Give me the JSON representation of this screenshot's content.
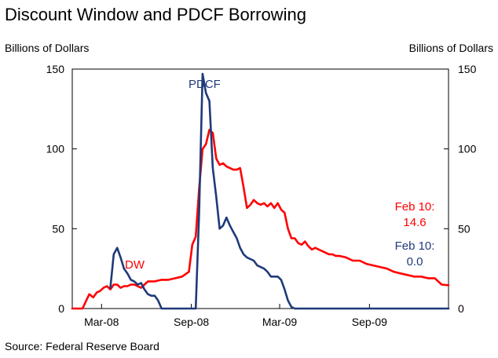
{
  "title": "Discount Window and PDCF Borrowing",
  "source": "Source: Federal Reserve Board",
  "chart_data": {
    "type": "line",
    "title": "Discount Window and PDCF Borrowing",
    "y_left_label": "Billions of Dollars",
    "y_right_label": "Billions of Dollars",
    "ylim": [
      0,
      150
    ],
    "y_ticks": [
      "0",
      "50",
      "100",
      "150"
    ],
    "x_ticks": [
      {
        "label": "Mar-08",
        "date": "2008-03-01"
      },
      {
        "label": "Sep-08",
        "date": "2008-09-01"
      },
      {
        "label": "Mar-09",
        "date": "2009-03-01"
      },
      {
        "label": "Sep-09",
        "date": "2009-09-01"
      }
    ],
    "xlim": [
      "2008-01-01",
      "2010-02-10"
    ],
    "grid": false,
    "series": [
      {
        "name": "DW",
        "color": "#ff0000",
        "points": [
          [
            "2008-01-01",
            0
          ],
          [
            "2008-01-22",
            0
          ],
          [
            "2008-02-05",
            9
          ],
          [
            "2008-02-13",
            7
          ],
          [
            "2008-02-20",
            10
          ],
          [
            "2008-02-27",
            11
          ],
          [
            "2008-03-05",
            13
          ],
          [
            "2008-03-12",
            14
          ],
          [
            "2008-03-19",
            12
          ],
          [
            "2008-03-26",
            15
          ],
          [
            "2008-04-02",
            15
          ],
          [
            "2008-04-09",
            13
          ],
          [
            "2008-04-16",
            14
          ],
          [
            "2008-04-23",
            14
          ],
          [
            "2008-04-30",
            15
          ],
          [
            "2008-05-07",
            15
          ],
          [
            "2008-05-14",
            14
          ],
          [
            "2008-05-21",
            13
          ],
          [
            "2008-05-28",
            15
          ],
          [
            "2008-06-04",
            17
          ],
          [
            "2008-06-18",
            17
          ],
          [
            "2008-07-02",
            18
          ],
          [
            "2008-07-16",
            18
          ],
          [
            "2008-07-30",
            19
          ],
          [
            "2008-08-13",
            20
          ],
          [
            "2008-08-27",
            23
          ],
          [
            "2008-09-03",
            40
          ],
          [
            "2008-09-10",
            45
          ],
          [
            "2008-09-17",
            75
          ],
          [
            "2008-09-24",
            100
          ],
          [
            "2008-10-01",
            103
          ],
          [
            "2008-10-08",
            112
          ],
          [
            "2008-10-15",
            110
          ],
          [
            "2008-10-22",
            94
          ],
          [
            "2008-10-29",
            90
          ],
          [
            "2008-11-05",
            91
          ],
          [
            "2008-11-12",
            89
          ],
          [
            "2008-11-19",
            88
          ],
          [
            "2008-11-26",
            87
          ],
          [
            "2008-12-03",
            87
          ],
          [
            "2008-12-10",
            88
          ],
          [
            "2008-12-17",
            76
          ],
          [
            "2008-12-24",
            63
          ],
          [
            "2008-12-31",
            65
          ],
          [
            "2009-01-07",
            68
          ],
          [
            "2009-01-14",
            66
          ],
          [
            "2009-01-21",
            65
          ],
          [
            "2009-01-28",
            66
          ],
          [
            "2009-02-04",
            64
          ],
          [
            "2009-02-11",
            66
          ],
          [
            "2009-02-18",
            63
          ],
          [
            "2009-02-25",
            66
          ],
          [
            "2009-03-04",
            62
          ],
          [
            "2009-03-11",
            60
          ],
          [
            "2009-03-18",
            50
          ],
          [
            "2009-03-25",
            44
          ],
          [
            "2009-04-01",
            44
          ],
          [
            "2009-04-08",
            41
          ],
          [
            "2009-04-15",
            40
          ],
          [
            "2009-04-22",
            42
          ],
          [
            "2009-04-29",
            39
          ],
          [
            "2009-05-06",
            37
          ],
          [
            "2009-05-13",
            38
          ],
          [
            "2009-05-20",
            37
          ],
          [
            "2009-05-27",
            36
          ],
          [
            "2009-06-03",
            35
          ],
          [
            "2009-06-10",
            34
          ],
          [
            "2009-06-17",
            34
          ],
          [
            "2009-06-24",
            33
          ],
          [
            "2009-07-01",
            33
          ],
          [
            "2009-07-15",
            32
          ],
          [
            "2009-07-29",
            30
          ],
          [
            "2009-08-12",
            30
          ],
          [
            "2009-08-26",
            28
          ],
          [
            "2009-09-09",
            27
          ],
          [
            "2009-09-23",
            26
          ],
          [
            "2009-10-07",
            25
          ],
          [
            "2009-10-21",
            23
          ],
          [
            "2009-11-04",
            22
          ],
          [
            "2009-11-18",
            21
          ],
          [
            "2009-12-02",
            20
          ],
          [
            "2009-12-16",
            20
          ],
          [
            "2009-12-30",
            19
          ],
          [
            "2010-01-13",
            19
          ],
          [
            "2010-01-27",
            15
          ],
          [
            "2010-02-10",
            14.6
          ]
        ]
      },
      {
        "name": "PDCF",
        "color": "#1f3a7a",
        "points": [
          [
            "2008-03-19",
            13
          ],
          [
            "2008-03-26",
            34
          ],
          [
            "2008-04-02",
            38
          ],
          [
            "2008-04-09",
            32
          ],
          [
            "2008-04-16",
            25
          ],
          [
            "2008-04-23",
            22
          ],
          [
            "2008-04-30",
            18
          ],
          [
            "2008-05-07",
            17
          ],
          [
            "2008-05-14",
            15
          ],
          [
            "2008-05-21",
            16
          ],
          [
            "2008-05-28",
            12
          ],
          [
            "2008-06-04",
            9
          ],
          [
            "2008-06-11",
            8
          ],
          [
            "2008-06-18",
            8
          ],
          [
            "2008-06-25",
            5
          ],
          [
            "2008-07-02",
            0
          ],
          [
            "2008-09-10",
            0
          ],
          [
            "2008-09-17",
            60
          ],
          [
            "2008-09-24",
            147
          ],
          [
            "2008-10-01",
            135
          ],
          [
            "2008-10-08",
            130
          ],
          [
            "2008-10-15",
            88
          ],
          [
            "2008-10-22",
            70
          ],
          [
            "2008-10-29",
            50
          ],
          [
            "2008-11-05",
            52
          ],
          [
            "2008-11-12",
            57
          ],
          [
            "2008-11-19",
            52
          ],
          [
            "2008-11-26",
            48
          ],
          [
            "2008-12-03",
            44
          ],
          [
            "2008-12-10",
            38
          ],
          [
            "2008-12-17",
            34
          ],
          [
            "2008-12-24",
            32
          ],
          [
            "2008-12-31",
            31
          ],
          [
            "2009-01-07",
            30
          ],
          [
            "2009-01-14",
            27
          ],
          [
            "2009-01-21",
            26
          ],
          [
            "2009-01-28",
            25
          ],
          [
            "2009-02-04",
            23
          ],
          [
            "2009-02-11",
            20
          ],
          [
            "2009-02-18",
            20
          ],
          [
            "2009-02-25",
            20
          ],
          [
            "2009-03-04",
            18
          ],
          [
            "2009-03-11",
            12
          ],
          [
            "2009-03-18",
            5
          ],
          [
            "2009-03-25",
            1
          ],
          [
            "2009-04-01",
            0
          ],
          [
            "2010-02-10",
            0
          ]
        ]
      }
    ],
    "annotations": [
      {
        "label": "DW",
        "series": "DW",
        "color": "#ff0000"
      },
      {
        "label": "PDCF",
        "series": "PDCF",
        "color": "#1f3a7a"
      },
      {
        "label": "Feb 10:",
        "value": "14.6",
        "series": "DW",
        "color": "#ff0000"
      },
      {
        "label": "Feb 10:",
        "value": "0.0",
        "series": "PDCF",
        "color": "#1f3a7a"
      }
    ]
  }
}
